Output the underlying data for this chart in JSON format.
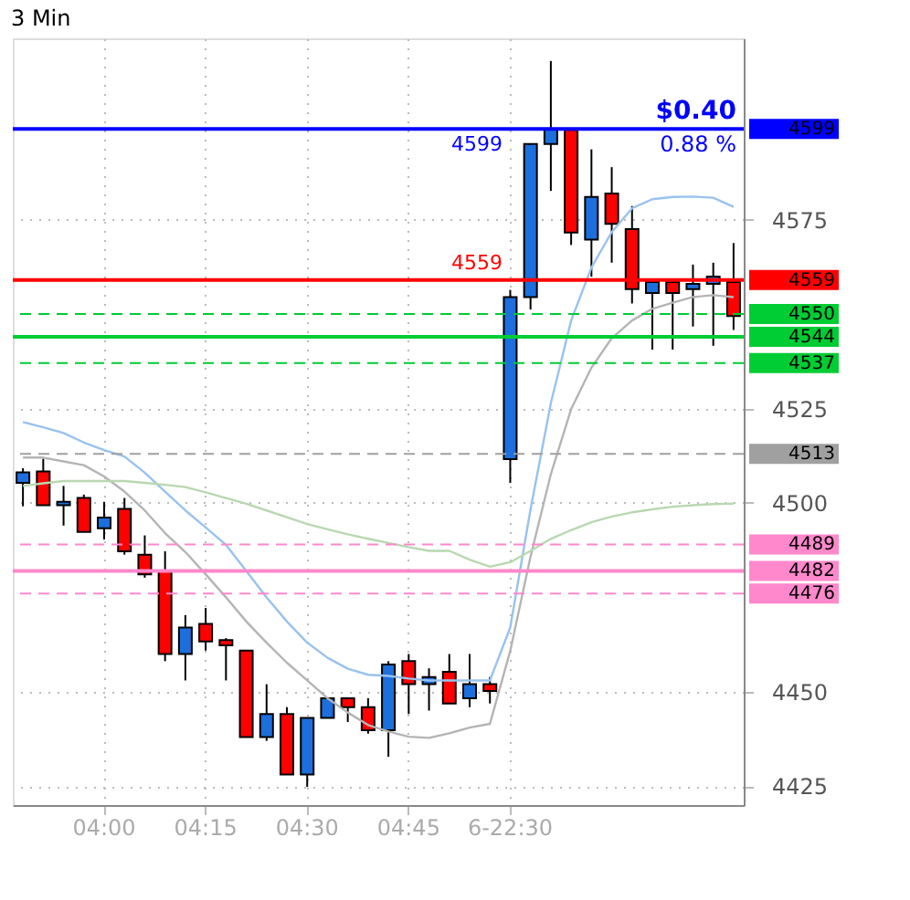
{
  "chart_data": {
    "type": "candlestick",
    "title": "3 Min",
    "categories": [
      null,
      null,
      null,
      null,
      "04:00",
      null,
      null,
      null,
      null,
      "04:15",
      null,
      null,
      null,
      null,
      "04:30",
      null,
      null,
      null,
      null,
      "04:45",
      null,
      null,
      null,
      null,
      "6-22:30",
      null,
      null,
      null,
      null,
      null,
      null,
      null,
      null,
      null,
      null,
      null
    ],
    "ohlc": [
      [
        4505.3,
        4509.2,
        4499.1,
        4508.1
      ],
      [
        4508.3,
        4511.7,
        4499.4,
        4499.4
      ],
      [
        4499.4,
        4504.5,
        4494,
        4500.3
      ],
      [
        4501.3,
        4502.2,
        4492.3,
        4492.3
      ],
      [
        4493.3,
        4500.3,
        4490.3,
        4496.1
      ],
      [
        4498.4,
        4501.3,
        4486.3,
        4487.2
      ],
      [
        4486.3,
        4491.4,
        4480.2,
        4481.1
      ],
      [
        4482,
        4487.2,
        4458.1,
        4460
      ],
      [
        4460,
        4470.3,
        4453,
        4467
      ],
      [
        4468,
        4472.2,
        4460.9,
        4463.3
      ],
      [
        4463.7,
        4464.2,
        4453,
        4462.3
      ],
      [
        4460.9,
        4460.9,
        4438,
        4438
      ],
      [
        4438,
        4452,
        4437,
        4444.1
      ],
      [
        4444.1,
        4445.9,
        4428.1,
        4428.1
      ],
      [
        4428.1,
        4443.1,
        4424.8,
        4443.1
      ],
      [
        4443.1,
        4448.3,
        4443.1,
        4448.3
      ],
      [
        4448.3,
        4448.3,
        4442,
        4445.9
      ],
      [
        4445.9,
        4448.3,
        4438.9,
        4439.8
      ],
      [
        4439.8,
        4458.1,
        4432.8,
        4457.2
      ],
      [
        4458.1,
        4460,
        4444.1,
        4452
      ],
      [
        4452,
        4456.2,
        4445,
        4453.9
      ],
      [
        4455.3,
        4460,
        4446.9,
        4446.9
      ],
      [
        4448.3,
        4460,
        4445.9,
        4452
      ],
      [
        4452,
        4453.9,
        4446.9,
        4450.2
      ],
      [
        4511.6,
        4556.4,
        4505.3,
        4554.5
      ],
      [
        4554.5,
        4595,
        4551.2,
        4595
      ],
      [
        4595,
        4617,
        4582.6,
        4599
      ],
      [
        4598.8,
        4598.8,
        4568.3,
        4571.6
      ],
      [
        4569.7,
        4593.6,
        4559.9,
        4581
      ],
      [
        4581.9,
        4588.9,
        4563.6,
        4573.9
      ],
      [
        4572.5,
        4578.6,
        4552.8,
        4556.6
      ],
      [
        4555.6,
        4558.5,
        4540.6,
        4558.5
      ],
      [
        4558.5,
        4558.5,
        4540.6,
        4555.6
      ],
      [
        4556.6,
        4563.1,
        4546.7,
        4558
      ],
      [
        4558,
        4563.6,
        4541.6,
        4559.9
      ],
      [
        4558.5,
        4568.8,
        4545.8,
        4549.5
      ]
    ],
    "colors": [
      "#1c6fdc",
      "#ff0000",
      "#1c6fdc",
      "#ff0000",
      "#1c6fdc",
      "#ff0000",
      "#ff0000",
      "#ff0000",
      "#1c6fdc",
      "#ff0000",
      "#ff0000",
      "#ff0000",
      "#1c6fdc",
      "#ff0000",
      "#1c6fdc",
      "#1c6fdc",
      "#ff0000",
      "#ff0000",
      "#1c6fdc",
      "#ff0000",
      "#1c6fdc",
      "#ff0000",
      "#1c6fdc",
      "#ff0000",
      "#1c6fdc",
      "#1c6fdc",
      "#1c6fdc",
      "#ff0000",
      "#1c6fdc",
      "#ff0000",
      "#ff0000",
      "#1c6fdc",
      "#ff0000",
      "#1c6fdc",
      "#1c6fdc",
      "#ff0000"
    ],
    "series": [
      {
        "type": "line",
        "color": "#99c2ee",
        "values": [
          4521.4,
          4520,
          4518.5,
          4516,
          4514,
          4512.3,
          4508,
          4503,
          4498,
          4493.5,
          4488.9,
          4482,
          4475,
          4468.6,
          4463,
          4459,
          4456.1,
          4454.5,
          4454.2,
          4453.5,
          4453,
          4453,
          4453,
          4453,
          4467,
          4498.3,
          4526.4,
          4548.3,
          4562.3,
          4571.7,
          4578,
          4580.4,
          4581,
          4581.1,
          4580.8,
          4578.4
        ]
      },
      {
        "type": "line",
        "color": "#b4b4b4",
        "values": [
          4512,
          4512,
          4511,
          4510,
          4507,
          4503,
          4498,
          4492,
          4487,
          4481.1,
          4475,
          4468.6,
          4463,
          4457.7,
          4453,
          4448.3,
          4444.5,
          4441.2,
          4439.5,
          4438.1,
          4437.8,
          4439,
          4440.5,
          4441.5,
          4460.8,
          4485.8,
          4507.6,
          4524.8,
          4535.8,
          4543.6,
          4548.3,
          4551.4,
          4553,
          4554.5,
          4555,
          4554.5
        ]
      },
      {
        "type": "line",
        "color": "#b8d8b0",
        "values": [
          4504.5,
          4505.2,
          4505.8,
          4505.8,
          4505.8,
          4505.8,
          4505.3,
          4504.8,
          4504.2,
          4502.8,
          4501.3,
          4499.8,
          4498,
          4496.2,
          4494.4,
          4493,
          4491.7,
          4490.5,
          4489.4,
          4488.3,
          4487.3,
          4487.3,
          4485,
          4483.1,
          4484.3,
          4487.3,
          4490.5,
          4492.8,
          4494.9,
          4496.4,
          4497.5,
          4498.3,
          4499,
          4499.4,
          4499.7,
          4499.8
        ]
      }
    ],
    "ylim": [
      4420,
      4623
    ],
    "yticks": [
      4425,
      4450,
      4500,
      4525,
      4575
    ],
    "grid": true,
    "ref_lines": [
      {
        "axis": "y",
        "value": 4599,
        "label": "4599",
        "color": "#0000ff",
        "line_style": "solid"
      },
      {
        "axis": "y",
        "value": 4559,
        "label": "4559",
        "color": "#ff0000",
        "line_style": "solid"
      },
      {
        "axis": "y",
        "value": 4550,
        "label": "4550",
        "color": "#00cc33",
        "line_style": "dashed"
      },
      {
        "axis": "y",
        "value": 4544,
        "label": "4544",
        "color": "#00cc33",
        "line_style": "solid"
      },
      {
        "axis": "y",
        "value": 4537,
        "label": "4537",
        "color": "#00cc33",
        "line_style": "dashed"
      },
      {
        "axis": "y",
        "value": 4513,
        "label": "4513",
        "color": "#a0a0a0",
        "line_style": "dashed"
      },
      {
        "axis": "y",
        "value": 4489,
        "label": "4489",
        "color": "#ff88cc",
        "line_style": "dashed"
      },
      {
        "axis": "y",
        "value": 4482,
        "label": "4482",
        "color": "#ff88cc",
        "line_style": "solid"
      },
      {
        "axis": "y",
        "value": 4476,
        "label": "4476",
        "color": "#ff88cc",
        "line_style": "dashed"
      }
    ],
    "annotations": [
      "$0.40",
      "0.88 %",
      {
        "text": "4599",
        "y": 4599
      },
      {
        "text": "4559",
        "y": 4559
      }
    ]
  }
}
